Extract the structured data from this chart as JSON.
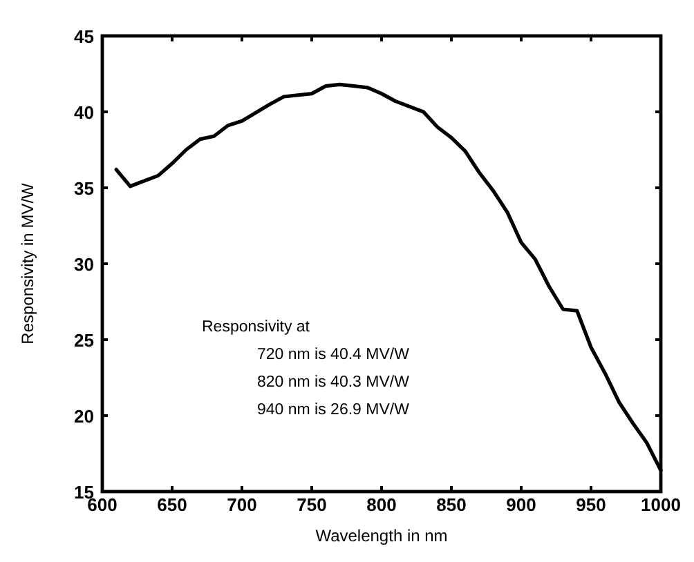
{
  "chart_data": {
    "type": "line",
    "xlabel": "Wavelength in nm",
    "ylabel": "Responsivity in MV/W",
    "annotations": [
      "Responsivity at",
      "720 nm is 40.4 MV/W",
      "820 nm is 40.3 MV/W",
      "940 nm is 26.9 MV/W"
    ],
    "xlim": [
      600,
      1000
    ],
    "xticks": [
      600,
      650,
      700,
      750,
      800,
      850,
      900,
      950,
      1000
    ],
    "ylim": [
      15,
      45
    ],
    "yticks": [
      15,
      20,
      25,
      30,
      35,
      40,
      45
    ],
    "grid": false,
    "marker": "none",
    "line_style": "solid",
    "series": [
      {
        "color": "#000000",
        "x": [
          610,
          620,
          640,
          650,
          660,
          670,
          680,
          690,
          700,
          720,
          730,
          750,
          760,
          770,
          790,
          800,
          810,
          830,
          840,
          850,
          860,
          870,
          880,
          890,
          900,
          910,
          920,
          930,
          940,
          950,
          960,
          970,
          980,
          990,
          1000
        ],
        "values": [
          36.2,
          35.1,
          35.8,
          36.6,
          37.5,
          38.2,
          38.4,
          39.1,
          39.4,
          40.5,
          41.0,
          41.2,
          41.7,
          41.8,
          41.6,
          41.2,
          40.7,
          40.0,
          39.0,
          38.3,
          37.4,
          36.0,
          34.8,
          33.4,
          31.4,
          30.3,
          28.5,
          27.0,
          26.9,
          24.5,
          22.8,
          20.9,
          19.5,
          18.2,
          16.4
        ]
      }
    ]
  }
}
